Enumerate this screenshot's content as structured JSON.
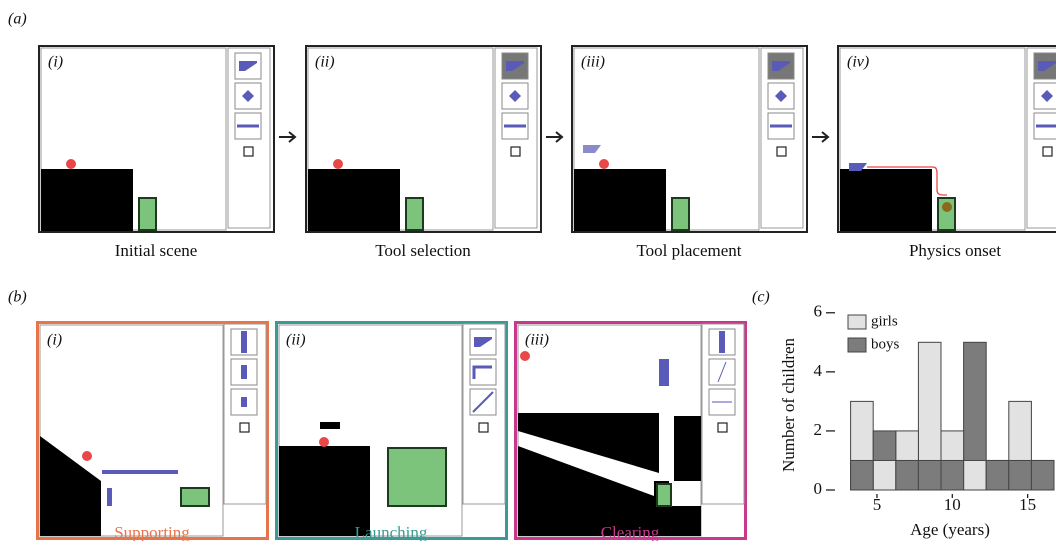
{
  "figure_labels": {
    "a": "(a)",
    "b": "(b)",
    "c": "(c)"
  },
  "panel_a": {
    "panels": [
      {
        "label": "(i)",
        "caption": "Initial scene"
      },
      {
        "label": "(ii)",
        "caption": "Tool selection"
      },
      {
        "label": "(iii)",
        "caption": "Tool placement"
      },
      {
        "label": "(iv)",
        "caption": "Physics onset"
      }
    ]
  },
  "panel_b": {
    "panels": [
      {
        "label": "(i)",
        "caption": "Supporting",
        "color": "#e8744a"
      },
      {
        "label": "(ii)",
        "caption": "Launching",
        "color": "#3a9b94"
      },
      {
        "label": "(iii)",
        "caption": "Clearing",
        "color": "#c8388c"
      }
    ]
  },
  "chart_data": {
    "type": "histogram",
    "ylabel": "Number of children",
    "xlabel": "Age (years)",
    "bins": [
      3.25,
      4.75,
      6.25,
      7.75,
      9.25,
      10.75,
      12.25,
      13.75,
      15.25,
      16.75
    ],
    "series": [
      {
        "name": "girls",
        "color": "#e2e2e2",
        "values": [
          3,
          1,
          2,
          5,
          2,
          1,
          1,
          3,
          1
        ]
      },
      {
        "name": "boys",
        "color": "#7c7c7c",
        "values": [
          1,
          2,
          1,
          1,
          1,
          5,
          1,
          1,
          1
        ]
      }
    ],
    "xlim": [
      3.25,
      16.75
    ],
    "ylim": [
      0,
      6.5
    ],
    "xticks": [
      5,
      10,
      15
    ],
    "yticks": [
      0,
      2,
      4,
      6
    ],
    "legend": "upper left"
  }
}
